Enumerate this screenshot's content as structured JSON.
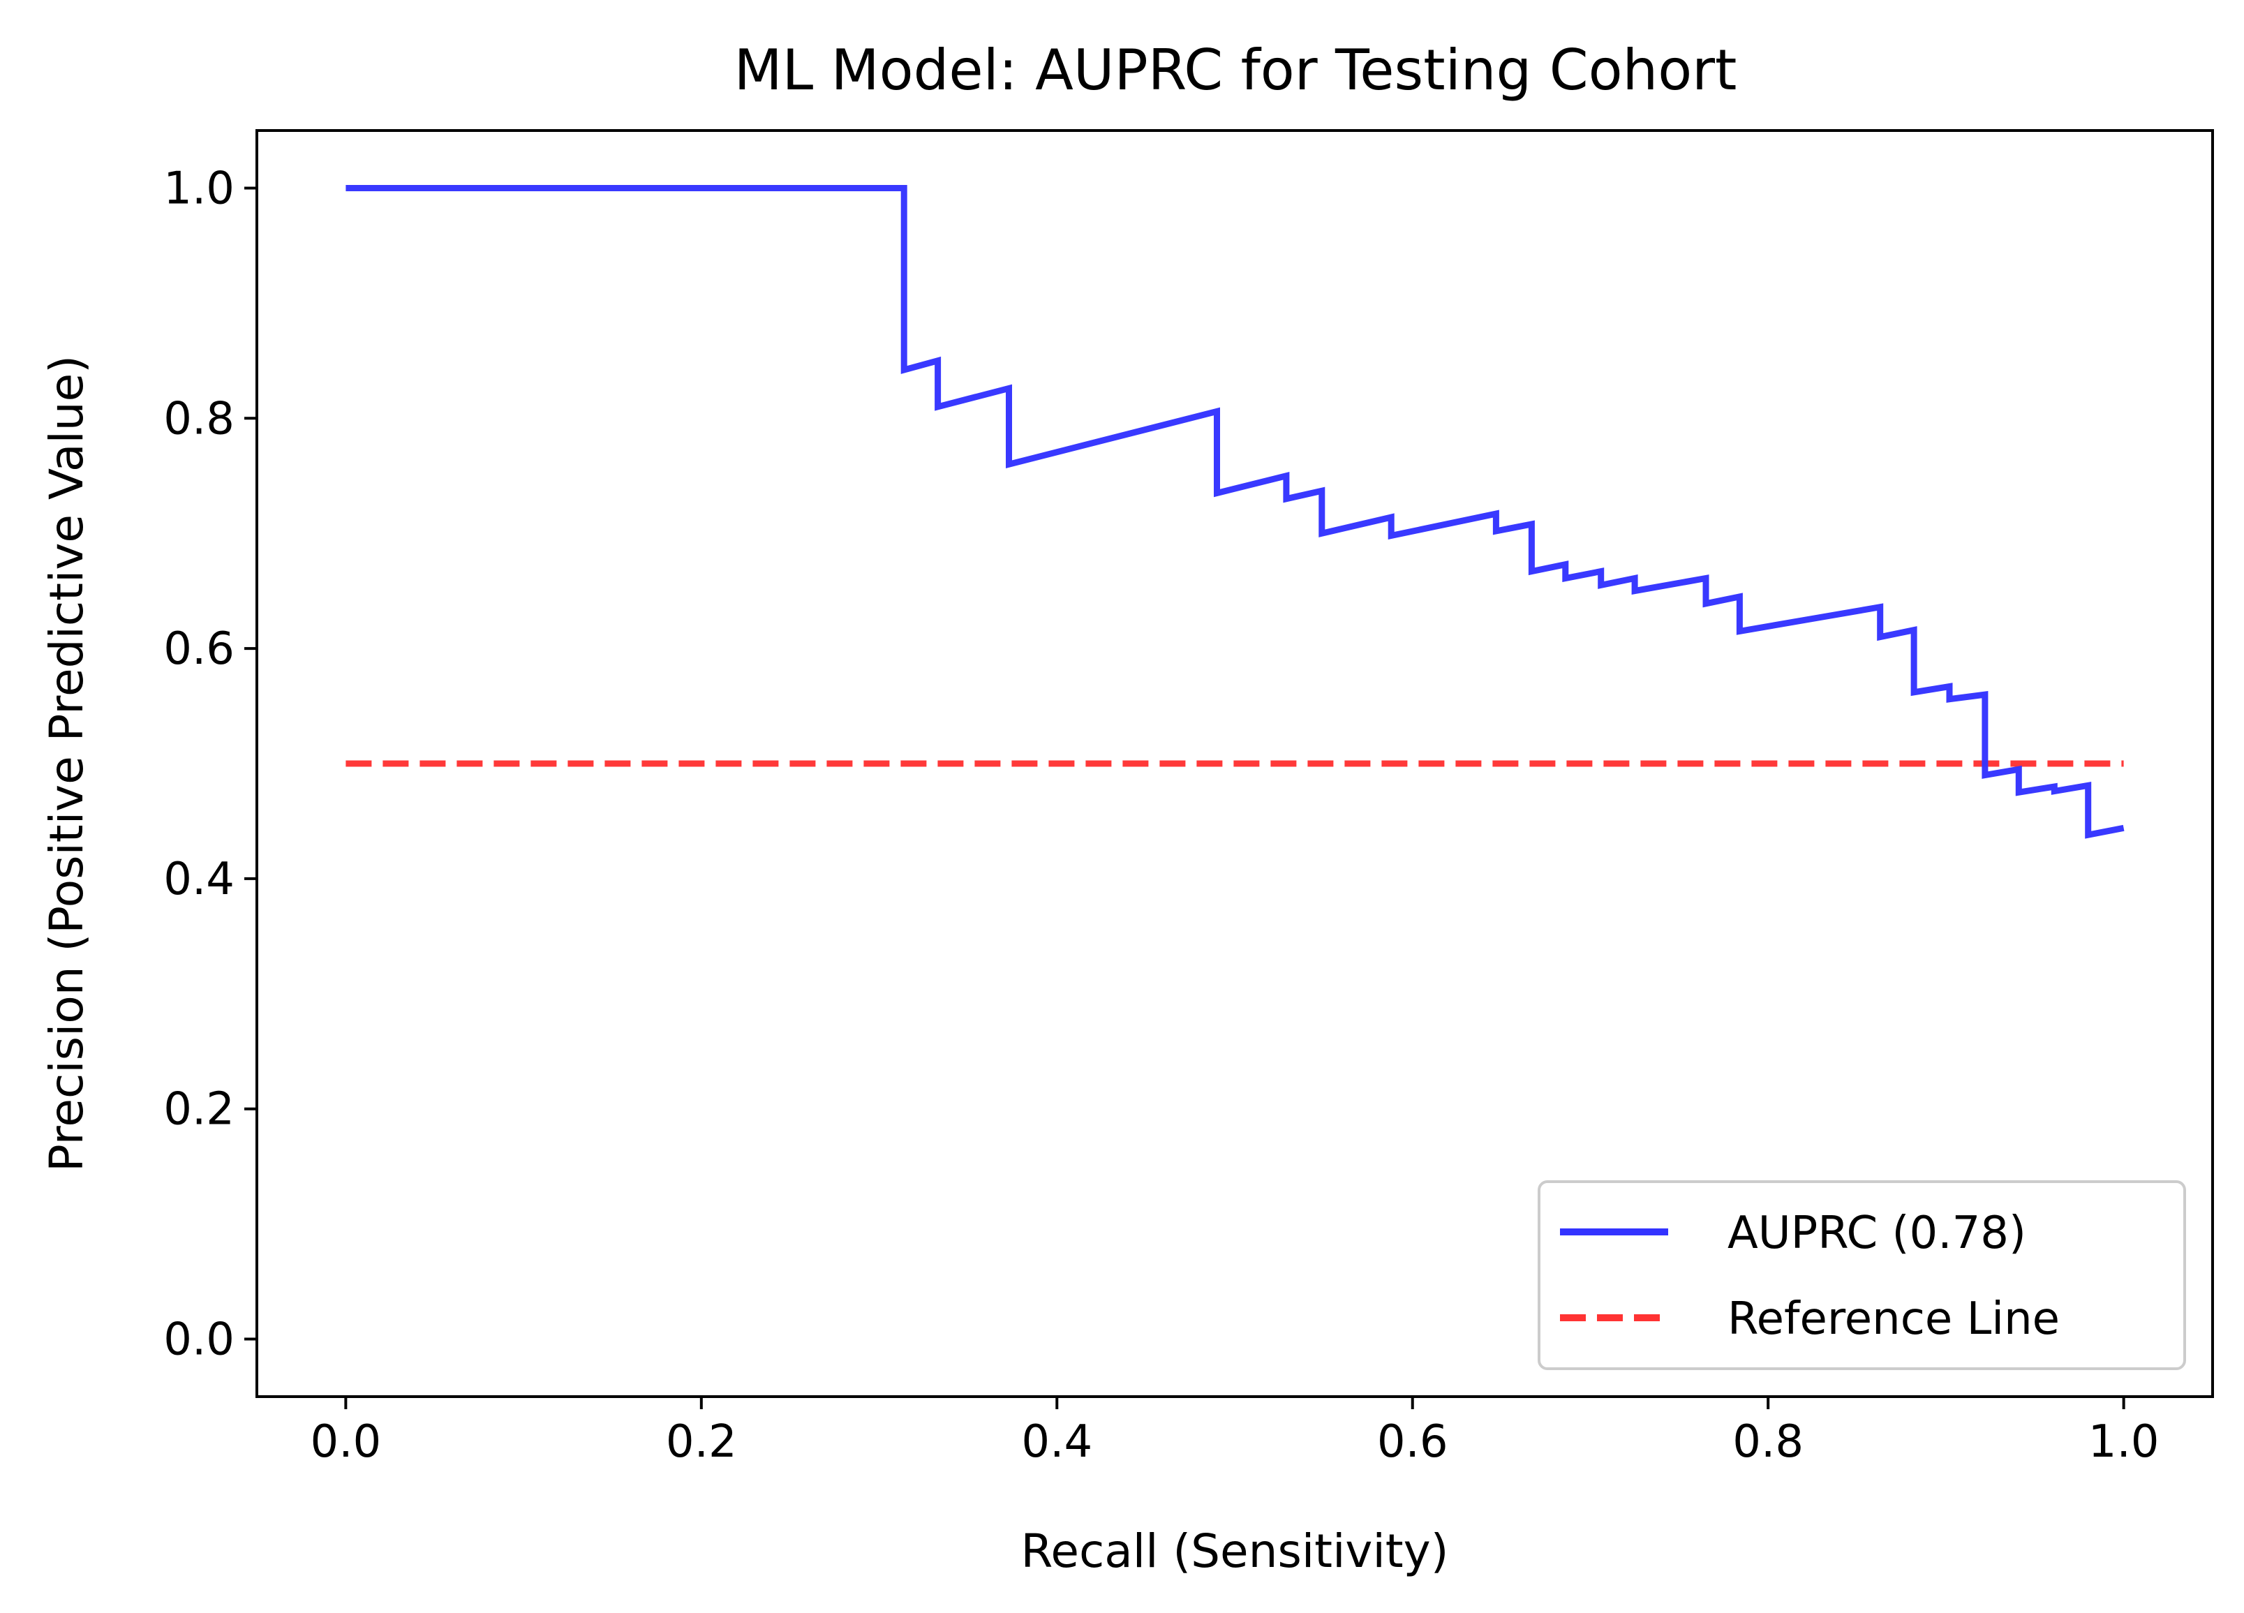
{
  "chart_data": {
    "type": "line",
    "title": "ML Model: AUPRC for Testing Cohort",
    "xlabel": "Recall (Sensitivity)",
    "ylabel": "Precision (Positive Predictive Value)",
    "xlim": [
      -0.05,
      1.05
    ],
    "ylim": [
      -0.05,
      1.05
    ],
    "xticks": [
      0.0,
      0.2,
      0.4,
      0.6,
      0.8,
      1.0
    ],
    "xtick_labels": [
      "0.0",
      "0.2",
      "0.4",
      "0.6",
      "0.8",
      "1.0"
    ],
    "yticks": [
      0.0,
      0.2,
      0.4,
      0.6,
      0.8,
      1.0
    ],
    "ytick_labels": [
      "0.0",
      "0.2",
      "0.4",
      "0.6",
      "0.8",
      "1.0"
    ],
    "grid": false,
    "legend_position": "lower-right",
    "series": [
      {
        "name": "AUPRC (0.78)",
        "color": "#3333ff",
        "style": "solid",
        "x": [
          0.0,
          0.314,
          0.314,
          0.333,
          0.333,
          0.373,
          0.373,
          0.49,
          0.49,
          0.529,
          0.529,
          0.549,
          0.549,
          0.588,
          0.588,
          0.647,
          0.647,
          0.667,
          0.667,
          0.686,
          0.686,
          0.706,
          0.706,
          0.725,
          0.725,
          0.765,
          0.765,
          0.784,
          0.784,
          0.863,
          0.863,
          0.882,
          0.882,
          0.902,
          0.902,
          0.922,
          0.922,
          0.941,
          0.941,
          0.961,
          0.961,
          0.98,
          0.98,
          1.0
        ],
        "y": [
          1.0,
          1.0,
          0.842,
          0.85,
          0.81,
          0.826,
          0.76,
          0.806,
          0.735,
          0.75,
          0.73,
          0.737,
          0.7,
          0.714,
          0.698,
          0.717,
          0.702,
          0.708,
          0.667,
          0.673,
          0.661,
          0.667,
          0.655,
          0.661,
          0.65,
          0.661,
          0.639,
          0.645,
          0.615,
          0.636,
          0.61,
          0.616,
          0.562,
          0.567,
          0.556,
          0.56,
          0.49,
          0.495,
          0.475,
          0.48,
          0.476,
          0.481,
          0.438,
          0.444
        ]
      },
      {
        "name": "Reference Line",
        "color": "#ff3333",
        "style": "dashed",
        "x": [
          0.0,
          1.0
        ],
        "y": [
          0.5,
          0.5
        ]
      }
    ]
  }
}
